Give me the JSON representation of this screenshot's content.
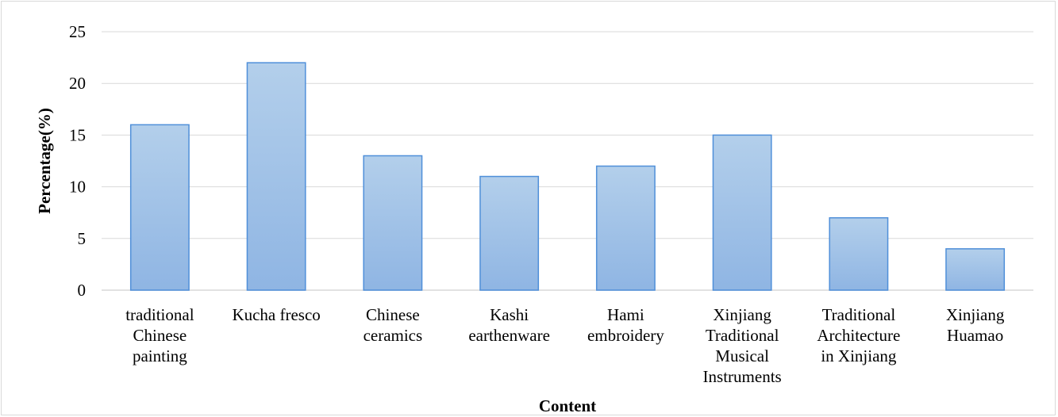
{
  "chart_data": {
    "type": "bar",
    "categories": [
      [
        "traditional",
        "Chinese",
        "painting"
      ],
      [
        "Kucha fresco"
      ],
      [
        "Chinese",
        "ceramics"
      ],
      [
        "Kashi",
        "earthenware"
      ],
      [
        "Hami",
        "embroidery"
      ],
      [
        "Xinjiang",
        "Traditional",
        "Musical",
        "Instruments"
      ],
      [
        "Traditional",
        "Architecture",
        "in Xinjiang"
      ],
      [
        "Xinjiang",
        "Huamao"
      ]
    ],
    "values": [
      16,
      22,
      13,
      11,
      12,
      15,
      7,
      4
    ],
    "xlabel": "Content",
    "ylabel": "Percentage(%)",
    "ylim": [
      0,
      25
    ],
    "yticks": [
      "0",
      "5",
      "10",
      "15",
      "20",
      "25"
    ],
    "grid": true,
    "legend": "none",
    "colors": {
      "bar_top": "#b3cfeb",
      "bar_bottom": "#8fb5e3",
      "bar_stroke": "#4f8fd9",
      "grid": "#d9d9d9"
    }
  }
}
